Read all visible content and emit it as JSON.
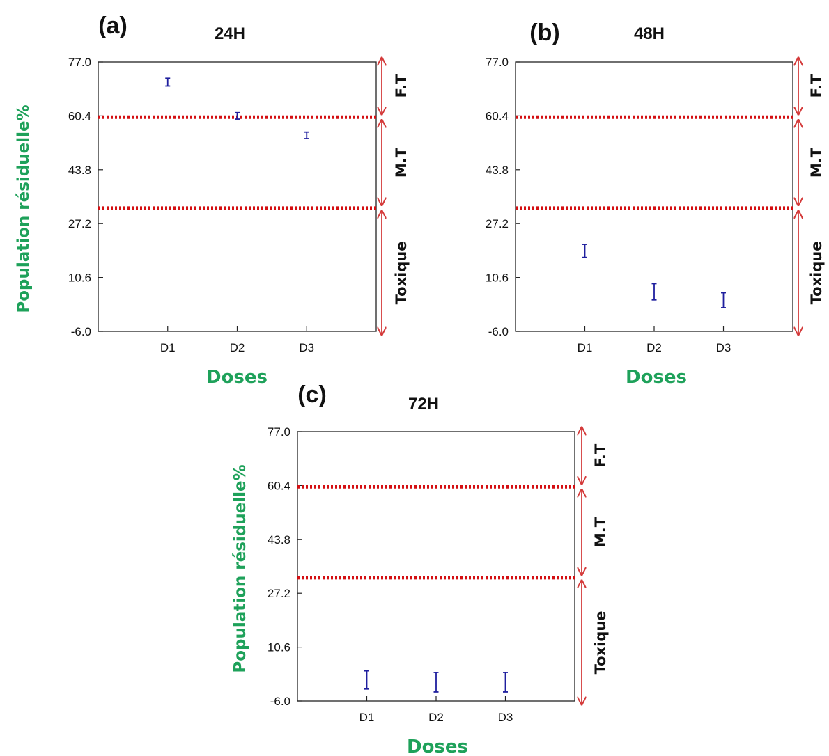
{
  "colors": {
    "axis_label": "#1ea15a",
    "threshold": "#d40f12",
    "arrow": "#d43a3a",
    "points": "#1f1f9e",
    "axes": "#222222"
  },
  "figure": {
    "y_axis_title": "Population résiduelle%",
    "x_axis_title": "Doses",
    "zones": {
      "top": "F.T",
      "middle": "M.T",
      "bottom": "Toxique"
    }
  },
  "chart_data": [
    {
      "type": "scatter",
      "panel": "(a)",
      "title": "24H",
      "xlabel": "Doses",
      "ylabel": "Population résiduelle%",
      "categories": [
        "D1",
        "D2",
        "D3"
      ],
      "yticks": [
        "77.0",
        "60.4",
        "43.8",
        "27.2",
        "10.6",
        "-6.0"
      ],
      "ylim": [
        -6.0,
        77.0
      ],
      "thresholds": [
        60.0,
        32.0
      ],
      "series": [
        {
          "values": [
            70.8,
            60.4,
            54.4
          ],
          "err_low": [
            1.2,
            1.0,
            1.0
          ],
          "err_high": [
            1.2,
            1.0,
            1.0
          ]
        }
      ]
    },
    {
      "type": "scatter",
      "panel": "(b)",
      "title": "48H",
      "xlabel": "Doses",
      "ylabel": "",
      "categories": [
        "D1",
        "D2",
        "D3"
      ],
      "yticks": [
        "77.0",
        "60.4",
        "43.8",
        "27.2",
        "10.6",
        "-6.0"
      ],
      "ylim": [
        -6.0,
        77.0
      ],
      "thresholds": [
        60.0,
        32.0
      ],
      "series": [
        {
          "values": [
            18.8,
            6.2,
            3.6
          ],
          "err_low": [
            2.0,
            2.5,
            2.3
          ],
          "err_high": [
            2.0,
            2.5,
            2.3
          ]
        }
      ]
    },
    {
      "type": "scatter",
      "panel": "(c)",
      "title": "72H",
      "xlabel": "Doses",
      "ylabel": "Population résiduelle%",
      "categories": [
        "D1",
        "D2",
        "D3"
      ],
      "yticks": [
        "77.0",
        "60.4",
        "43.8",
        "27.2",
        "10.6",
        "-6.0"
      ],
      "ylim": [
        -6.0,
        77.0
      ],
      "thresholds": [
        60.0,
        32.0
      ],
      "series": [
        {
          "values": [
            0.5,
            -0.2,
            -0.2
          ],
          "err_low": [
            2.8,
            3.0,
            3.0
          ],
          "err_high": [
            2.8,
            3.0,
            3.0
          ]
        }
      ]
    }
  ]
}
